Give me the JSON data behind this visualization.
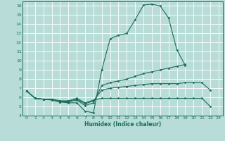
{
  "xlabel": "Humidex (Indice chaleur)",
  "xlim": [
    -0.5,
    23.5
  ],
  "ylim": [
    4,
    16.5
  ],
  "yticks": [
    4,
    5,
    6,
    7,
    8,
    9,
    10,
    11,
    12,
    13,
    14,
    15,
    16
  ],
  "xticks": [
    0,
    1,
    2,
    3,
    4,
    5,
    6,
    7,
    8,
    9,
    10,
    11,
    12,
    13,
    14,
    15,
    16,
    17,
    18,
    19,
    20,
    21,
    22,
    23
  ],
  "bg_color": "#b8ddd8",
  "line_color": "#1a6b5a",
  "grid_color": "#ffffff",
  "series": [
    [
      6.7,
      5.9,
      5.8,
      5.7,
      5.5,
      5.4,
      5.4,
      4.5,
      4.3,
      9.0,
      12.4,
      12.8,
      13.0,
      14.5,
      16.1,
      16.2,
      16.0,
      14.7,
      11.2,
      9.5,
      null,
      null,
      null,
      null
    ],
    [
      6.7,
      5.9,
      5.8,
      5.8,
      5.5,
      5.5,
      5.7,
      5.1,
      5.4,
      7.3,
      7.6,
      7.8,
      8.0,
      8.3,
      8.6,
      8.8,
      9.0,
      9.2,
      9.4,
      9.6,
      null,
      null,
      null,
      null
    ],
    [
      6.7,
      5.9,
      5.8,
      5.8,
      5.6,
      5.6,
      5.8,
      5.3,
      5.6,
      6.8,
      7.0,
      7.1,
      7.2,
      7.3,
      7.4,
      7.5,
      7.5,
      7.5,
      7.5,
      7.6,
      7.6,
      7.6,
      6.8,
      null
    ],
    [
      6.7,
      5.9,
      5.8,
      5.8,
      5.6,
      5.6,
      5.9,
      5.4,
      5.7,
      5.9,
      5.9,
      5.9,
      5.9,
      5.9,
      5.9,
      5.9,
      5.9,
      5.9,
      5.9,
      5.9,
      5.9,
      5.9,
      5.0,
      null
    ]
  ]
}
